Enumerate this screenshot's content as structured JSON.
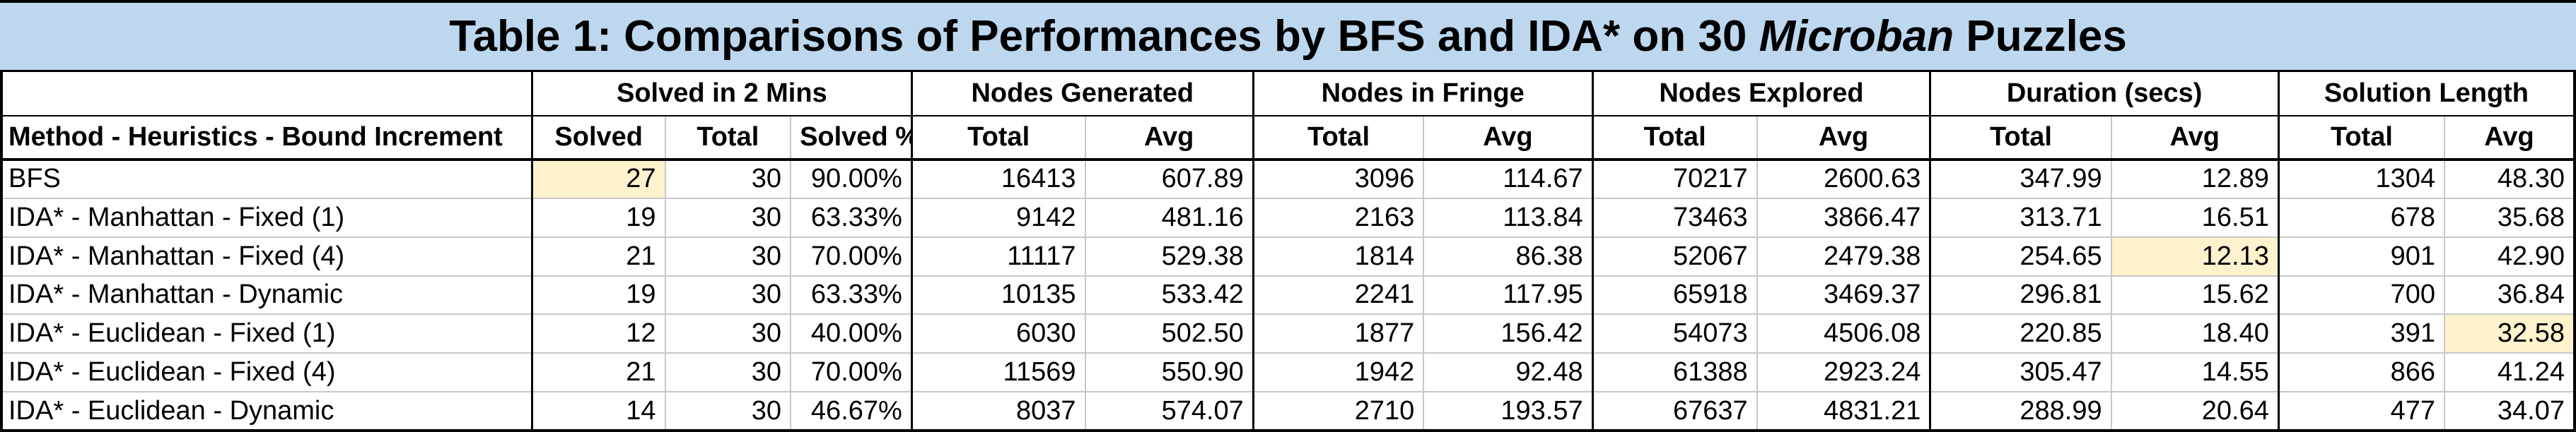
{
  "title": {
    "prefix": "Table 1: Comparisons of Performances by BFS and IDA* on 30 ",
    "italic": "Microban",
    "suffix": " Puzzles"
  },
  "groups": {
    "solved": "Solved in 2 Mins",
    "nodes_generated": "Nodes Generated",
    "nodes_fringe": "Nodes in Fringe",
    "nodes_explored": "Nodes Explored",
    "duration": "Duration (secs)",
    "solution_length": "Solution Length"
  },
  "subheaders": {
    "method": "Method - Heuristics - Bound Increment",
    "solved": "Solved",
    "total": "Total",
    "solved_pct": "Solved %",
    "avg": "Avg"
  },
  "highlight_color": "#fff2cc",
  "rows": [
    {
      "method": "BFS",
      "solved": "27",
      "total": "30",
      "pct": "90.00%",
      "gen_total": "16413",
      "gen_avg": "607.89",
      "fr_total": "3096",
      "fr_avg": "114.67",
      "ex_total": "70217",
      "ex_avg": "2600.63",
      "dur_total": "347.99",
      "dur_avg": "12.89",
      "len_total": "1304",
      "len_avg": "48.30"
    },
    {
      "method": "IDA* - Manhattan - Fixed (1)",
      "solved": "19",
      "total": "30",
      "pct": "63.33%",
      "gen_total": "9142",
      "gen_avg": "481.16",
      "fr_total": "2163",
      "fr_avg": "113.84",
      "ex_total": "73463",
      "ex_avg": "3866.47",
      "dur_total": "313.71",
      "dur_avg": "16.51",
      "len_total": "678",
      "len_avg": "35.68"
    },
    {
      "method": "IDA* - Manhattan - Fixed (4)",
      "solved": "21",
      "total": "30",
      "pct": "70.00%",
      "gen_total": "11117",
      "gen_avg": "529.38",
      "fr_total": "1814",
      "fr_avg": "86.38",
      "ex_total": "52067",
      "ex_avg": "2479.38",
      "dur_total": "254.65",
      "dur_avg": "12.13",
      "len_total": "901",
      "len_avg": "42.90"
    },
    {
      "method": "IDA* - Manhattan - Dynamic",
      "solved": "19",
      "total": "30",
      "pct": "63.33%",
      "gen_total": "10135",
      "gen_avg": "533.42",
      "fr_total": "2241",
      "fr_avg": "117.95",
      "ex_total": "65918",
      "ex_avg": "3469.37",
      "dur_total": "296.81",
      "dur_avg": "15.62",
      "len_total": "700",
      "len_avg": "36.84"
    },
    {
      "method": "IDA* - Euclidean - Fixed (1)",
      "solved": "12",
      "total": "30",
      "pct": "40.00%",
      "gen_total": "6030",
      "gen_avg": "502.50",
      "fr_total": "1877",
      "fr_avg": "156.42",
      "ex_total": "54073",
      "ex_avg": "4506.08",
      "dur_total": "220.85",
      "dur_avg": "18.40",
      "len_total": "391",
      "len_avg": "32.58"
    },
    {
      "method": "IDA* - Euclidean - Fixed (4)",
      "solved": "21",
      "total": "30",
      "pct": "70.00%",
      "gen_total": "11569",
      "gen_avg": "550.90",
      "fr_total": "1942",
      "fr_avg": "92.48",
      "ex_total": "61388",
      "ex_avg": "2923.24",
      "dur_total": "305.47",
      "dur_avg": "14.55",
      "len_total": "866",
      "len_avg": "41.24"
    },
    {
      "method": "IDA* - Euclidean - Dynamic",
      "solved": "14",
      "total": "30",
      "pct": "46.67%",
      "gen_total": "8037",
      "gen_avg": "574.07",
      "fr_total": "2710",
      "fr_avg": "193.57",
      "ex_total": "67637",
      "ex_avg": "4831.21",
      "dur_total": "288.99",
      "dur_avg": "20.64",
      "len_total": "477",
      "len_avg": "34.07"
    }
  ]
}
